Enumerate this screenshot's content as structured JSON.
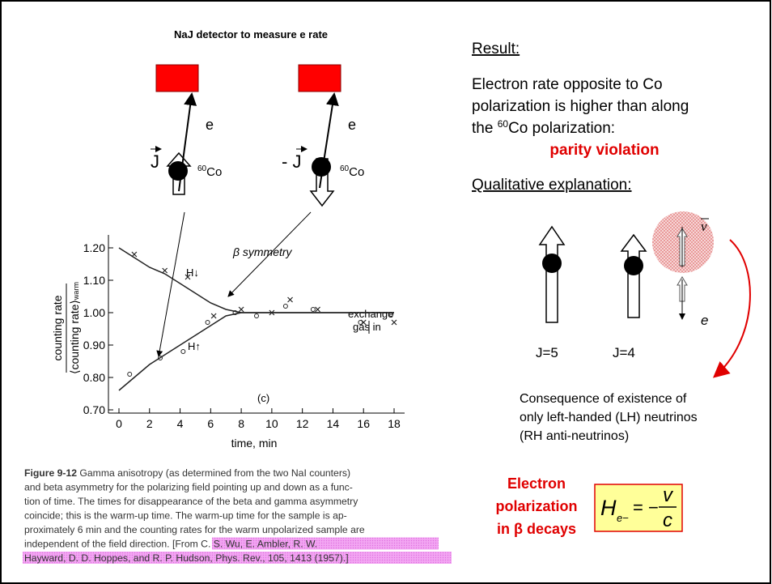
{
  "left": {
    "detector_title": "NaJ detector to measure e rate",
    "e_left": "e",
    "e_right": "e",
    "j_left": "J",
    "j_right": "- J",
    "co_left": {
      "sup": "60",
      "text": "Co"
    },
    "co_right": {
      "sup": "60",
      "text": "Co"
    }
  },
  "figure": {
    "x_label": "time, min",
    "y_label_top": "counting rate",
    "y_label_bottom": "⟨counting rate⟩",
    "y_label_sub": "warm",
    "annotation_symmetry": "β symmetry",
    "annotation_h_down": "H↓",
    "annotation_h_up": "H↑",
    "annotation_exchange_1": "exchange",
    "annotation_exchange_2": "gas in",
    "panel_label": "(c)",
    "xlim": [
      0,
      18
    ],
    "ylim": [
      0.7,
      1.2
    ],
    "xticks": [
      0,
      2,
      4,
      6,
      8,
      10,
      12,
      14,
      16,
      18
    ],
    "yticks": [
      {
        "value": 1.2,
        "label": "1.20"
      },
      {
        "value": 1.1,
        "label": "1.10"
      },
      {
        "value": 1.0,
        "label": "1.00"
      },
      {
        "value": 0.9,
        "label": "0.90"
      },
      {
        "value": 0.8,
        "label": "0.80"
      },
      {
        "value": 0.7,
        "label": "0.70"
      }
    ],
    "curves": [
      {
        "x": [
          0,
          1,
          2,
          3,
          4,
          5,
          6,
          7,
          8,
          10,
          12,
          14,
          16,
          18
        ],
        "values": [
          1.2,
          1.17,
          1.14,
          1.12,
          1.09,
          1.06,
          1.03,
          1.01,
          1.0,
          1.0,
          1.0,
          1.0,
          1.0,
          1.0
        ]
      },
      {
        "x": [
          0,
          1,
          2,
          3,
          4,
          5,
          6,
          7,
          8,
          10,
          12,
          14,
          16,
          18
        ],
        "values": [
          0.76,
          0.8,
          0.84,
          0.87,
          0.9,
          0.93,
          0.96,
          0.99,
          1.0,
          1.0,
          1.0,
          1.0,
          1.0,
          1.0
        ]
      }
    ],
    "points": [
      {
        "marker": "cross",
        "x": [
          1,
          3,
          4.5,
          6.2,
          8,
          10,
          11.2,
          13,
          16,
          18
        ],
        "values": [
          1.18,
          1.13,
          1.11,
          0.99,
          1.01,
          1.0,
          1.04,
          1.01,
          0.97,
          0.97
        ]
      },
      {
        "marker": "circle",
        "x": [
          0.7,
          2.7,
          4.2,
          5.8,
          7.6,
          9,
          10.9,
          12.7,
          15.8,
          17.8
        ],
        "values": [
          0.81,
          0.86,
          0.88,
          0.97,
          1.0,
          0.99,
          1.02,
          1.01,
          0.97,
          0.995
        ]
      }
    ],
    "caption": {
      "label": "Figure 9-12",
      "lines": [
        " Gamma anisotropy (as determined from the two NaI counters)",
        "and beta asymmetry for the polarizing field pointing up and down as a func-",
        "tion of time. The times for disappearance of the beta and gamma asymmetry",
        "coincide; this is the warm-up time. The warm-up time for the sample is ap-",
        "proximately 6 min and the counting rates for the warm unpolarized sample are",
        "independent of the field direction. [From "
      ],
      "reference": [
        "C. S. Wu, E. Ambler, R. W.",
        "Hayward, D. D. Hoppes, and R. P. Hudson, Phys. Rev., 105, 1413 (1957).]"
      ]
    }
  },
  "right": {
    "result_heading": "Result:",
    "result_lines": [
      "Electron rate opposite to Co",
      "polarization is higher than along",
      {
        "before": "the ",
        "sup": "60",
        "after": "Co polarization:"
      }
    ],
    "parity": "parity violation",
    "qualitative_heading": "Qualitative explanation:",
    "nu_bar": "ν",
    "e_label": "e",
    "j5": "J=5",
    "j4": "J=4",
    "consequence_lines": [
      "Consequence of  existence of",
      "only left-handed (LH) neutrinos",
      "(RH anti-neutrinos)"
    ],
    "polarization_lines": [
      "Electron",
      "polarization",
      "in β decays"
    ],
    "formula": {
      "h": "H",
      "sub": "e−",
      "eq": "= −",
      "num": "v",
      "den": "c"
    }
  }
}
